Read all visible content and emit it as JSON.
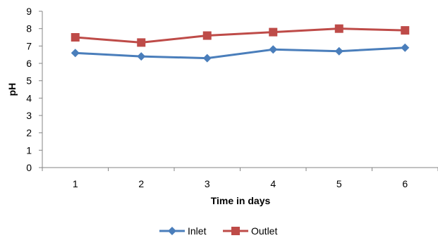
{
  "chart_data": {
    "type": "line",
    "title": "",
    "xlabel": "Time in days",
    "ylabel": "pH",
    "categories": [
      "1",
      "2",
      "3",
      "4",
      "5",
      "6"
    ],
    "ylim": [
      0,
      9
    ],
    "yticks": [
      "0",
      "1",
      "2",
      "3",
      "4",
      "5",
      "6",
      "7",
      "8",
      "9"
    ],
    "grid": false,
    "legend": "bottom",
    "series": [
      {
        "name": "Inlet",
        "color": "#4a7ebb",
        "marker": "diamond",
        "values": [
          6.6,
          6.4,
          6.3,
          6.8,
          6.7,
          6.9
        ]
      },
      {
        "name": "Outlet",
        "color": "#be4b48",
        "marker": "square",
        "values": [
          7.5,
          7.2,
          7.6,
          7.8,
          8.0,
          7.9
        ]
      }
    ]
  }
}
